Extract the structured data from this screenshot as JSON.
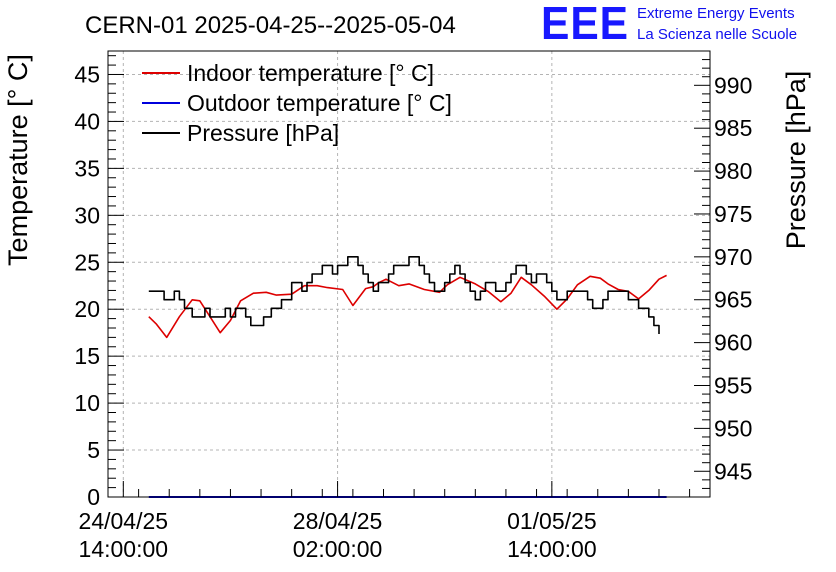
{
  "title": "CERN-01 2025-04-25--2025-05-04",
  "brand": {
    "logo": "EEE",
    "line1": "Extreme Energy Events",
    "line2": "La Scienza nelle Scuole",
    "color": "#1010ee"
  },
  "chart_data": {
    "type": "line",
    "title": "CERN-01 2025-04-25--2025-05-04",
    "ylabel": "Temperature [° C]",
    "y2label": "Pressure [hPa]",
    "ylim": [
      0,
      47.5
    ],
    "y2lim": [
      942,
      994
    ],
    "xlim_hours": [
      -6,
      230
    ],
    "yticks": [
      0,
      5,
      10,
      15,
      20,
      25,
      30,
      35,
      40,
      45
    ],
    "y2ticks": [
      945,
      950,
      955,
      960,
      965,
      970,
      975,
      980,
      985,
      990
    ],
    "xticks": [
      {
        "hours": 0,
        "date": "24/04/25",
        "time": "14:00:00"
      },
      {
        "hours": 84,
        "date": "28/04/25",
        "time": "02:00:00"
      },
      {
        "hours": 168,
        "date": "01/05/25",
        "time": "14:00:00"
      }
    ],
    "grid": true,
    "legend_position": "top-left",
    "series": [
      {
        "name": "Indoor temperature [° C]",
        "axis": "left",
        "color": "#dd0000",
        "x": [
          10,
          13,
          17,
          22,
          27,
          30,
          34,
          38,
          42,
          46,
          51,
          56,
          60,
          66,
          71,
          76,
          80,
          86,
          90,
          95,
          98,
          100,
          103,
          108,
          112,
          118,
          124,
          127,
          132,
          138,
          143,
          148,
          152,
          156,
          160,
          165,
          170,
          174,
          178,
          183,
          187,
          190,
          194,
          198,
          202,
          206,
          210,
          213
        ],
        "y": [
          19.2,
          18.4,
          17.0,
          19.2,
          21.0,
          20.9,
          19.2,
          17.5,
          18.8,
          20.9,
          21.7,
          21.8,
          21.5,
          21.6,
          22.5,
          22.5,
          22.3,
          22.1,
          20.4,
          22.2,
          22.4,
          22.8,
          23.2,
          22.5,
          22.7,
          22.1,
          21.8,
          22.6,
          23.4,
          22.7,
          21.9,
          20.8,
          21.7,
          23.4,
          22.6,
          21.4,
          20.0,
          21.1,
          22.6,
          23.5,
          23.3,
          22.7,
          22.1,
          21.9,
          21.1,
          22.0,
          23.2,
          23.6
        ]
      },
      {
        "name": "Outdoor temperature [° C]",
        "axis": "left",
        "color": "#0000dd",
        "x": [
          10,
          213
        ],
        "y": [
          0,
          0
        ]
      },
      {
        "name": "Pressure [hPa]",
        "axis": "right",
        "color": "#000000",
        "step": true,
        "x": [
          10,
          13,
          16,
          18,
          20,
          22,
          24,
          27,
          30,
          32,
          34,
          36,
          38,
          40,
          42,
          44,
          46,
          48,
          50,
          52,
          55,
          58,
          60,
          62,
          64,
          66,
          68,
          70,
          72,
          74,
          76,
          78,
          80,
          82,
          84,
          86,
          88,
          90,
          92,
          94,
          96,
          98,
          100,
          102,
          104,
          106,
          108,
          110,
          112,
          114,
          116,
          118,
          120,
          122,
          124,
          126,
          128,
          130,
          132,
          134,
          136,
          138,
          140,
          142,
          144,
          146,
          148,
          150,
          152,
          154,
          156,
          158,
          160,
          162,
          164,
          166,
          168,
          170,
          172,
          174,
          176,
          178,
          180,
          182,
          184,
          186,
          188,
          190,
          192,
          194,
          196,
          198,
          200,
          202,
          204,
          206,
          208,
          210
        ],
        "y": [
          966.0,
          966.0,
          965.0,
          965.0,
          966.0,
          965.0,
          964.0,
          963.0,
          963.0,
          964.0,
          963.0,
          963.0,
          963.0,
          964.0,
          963.0,
          964.0,
          964.0,
          963.0,
          962.0,
          962.0,
          963.0,
          964.0,
          964.0,
          965.0,
          965.0,
          967.0,
          967.0,
          966.0,
          967.0,
          968.0,
          968.0,
          969.0,
          969.0,
          968.0,
          969.0,
          969.0,
          970.0,
          970.0,
          969.0,
          968.0,
          967.0,
          966.0,
          967.0,
          967.0,
          968.0,
          969.0,
          969.0,
          969.0,
          970.0,
          970.0,
          969.0,
          968.0,
          967.0,
          966.0,
          966.0,
          967.0,
          968.0,
          969.0,
          968.0,
          967.0,
          966.0,
          965.0,
          966.0,
          967.0,
          967.0,
          966.0,
          966.0,
          967.0,
          968.0,
          969.0,
          969.0,
          968.0,
          967.0,
          968.0,
          968.0,
          967.0,
          966.0,
          965.0,
          965.0,
          966.0,
          966.0,
          966.0,
          966.0,
          965.0,
          964.0,
          964.0,
          965.0,
          966.0,
          966.0,
          966.0,
          966.0,
          965.0,
          965.0,
          964.0,
          964.0,
          963.0,
          962.0,
          961.0
        ]
      }
    ]
  }
}
